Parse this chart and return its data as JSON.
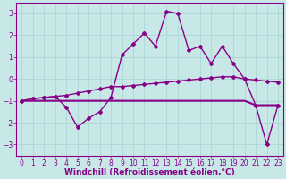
{
  "background_color": "#c8e8e8",
  "grid_color": "#b0d8d8",
  "line_color": "#880088",
  "xlabel": "Windchill (Refroidissement éolien,°C)",
  "ylim": [
    -3.5,
    3.5
  ],
  "xlim": [
    -0.5,
    23.5
  ],
  "yticks": [
    -3,
    -2,
    -1,
    0,
    1,
    2,
    3
  ],
  "xticks": [
    0,
    1,
    2,
    3,
    4,
    5,
    6,
    7,
    8,
    9,
    10,
    11,
    12,
    13,
    14,
    15,
    16,
    17,
    18,
    19,
    20,
    21,
    22,
    23
  ],
  "line1_flat": {
    "x": [
      0,
      1,
      2,
      3,
      4,
      5,
      6,
      7,
      8,
      9,
      10,
      11,
      12,
      13,
      14,
      15,
      16,
      17,
      18,
      19,
      20,
      21,
      22,
      23
    ],
    "y": [
      -1.0,
      -1.0,
      -1.0,
      -1.0,
      -1.0,
      -1.0,
      -1.0,
      -1.0,
      -1.0,
      -1.0,
      -1.0,
      -1.0,
      -1.0,
      -1.0,
      -1.0,
      -1.0,
      -1.0,
      -1.0,
      -1.0,
      -1.0,
      -1.0,
      -1.2,
      -1.2,
      -1.2
    ],
    "color": "#880088",
    "lw": 1.5,
    "marker": null,
    "ms": 0
  },
  "line2_gradual": {
    "x": [
      0,
      1,
      2,
      3,
      4,
      5,
      6,
      7,
      8,
      9,
      10,
      11,
      12,
      13,
      14,
      15,
      16,
      17,
      18,
      19,
      20,
      21,
      22,
      23
    ],
    "y": [
      -1.0,
      -0.9,
      -0.85,
      -0.8,
      -0.75,
      -0.65,
      -0.55,
      -0.45,
      -0.35,
      -0.35,
      -0.3,
      -0.25,
      -0.2,
      -0.15,
      -0.1,
      -0.05,
      0.0,
      0.05,
      0.1,
      0.1,
      0.0,
      -0.05,
      -0.1,
      -0.15
    ],
    "color": "#880088",
    "lw": 1.0,
    "marker": "D",
    "ms": 2
  },
  "line3_wiggly": {
    "x": [
      0,
      1,
      2,
      3,
      4,
      5,
      6,
      7,
      8,
      9,
      10,
      11,
      12,
      13,
      14,
      15,
      16,
      17,
      18,
      19,
      20,
      21,
      22,
      23
    ],
    "y": [
      -1.0,
      -0.9,
      -0.85,
      -0.8,
      -1.3,
      -2.2,
      -1.8,
      -1.5,
      -0.85,
      1.1,
      1.6,
      2.1,
      1.5,
      3.1,
      3.0,
      1.3,
      1.5,
      0.7,
      1.5,
      0.7,
      0.0,
      -1.2,
      -3.0,
      -1.2
    ],
    "color": "#880088",
    "lw": 1.0,
    "marker": "D",
    "ms": 2
  },
  "xlabel_fontsize": 6.5,
  "tick_fontsize": 5.5
}
